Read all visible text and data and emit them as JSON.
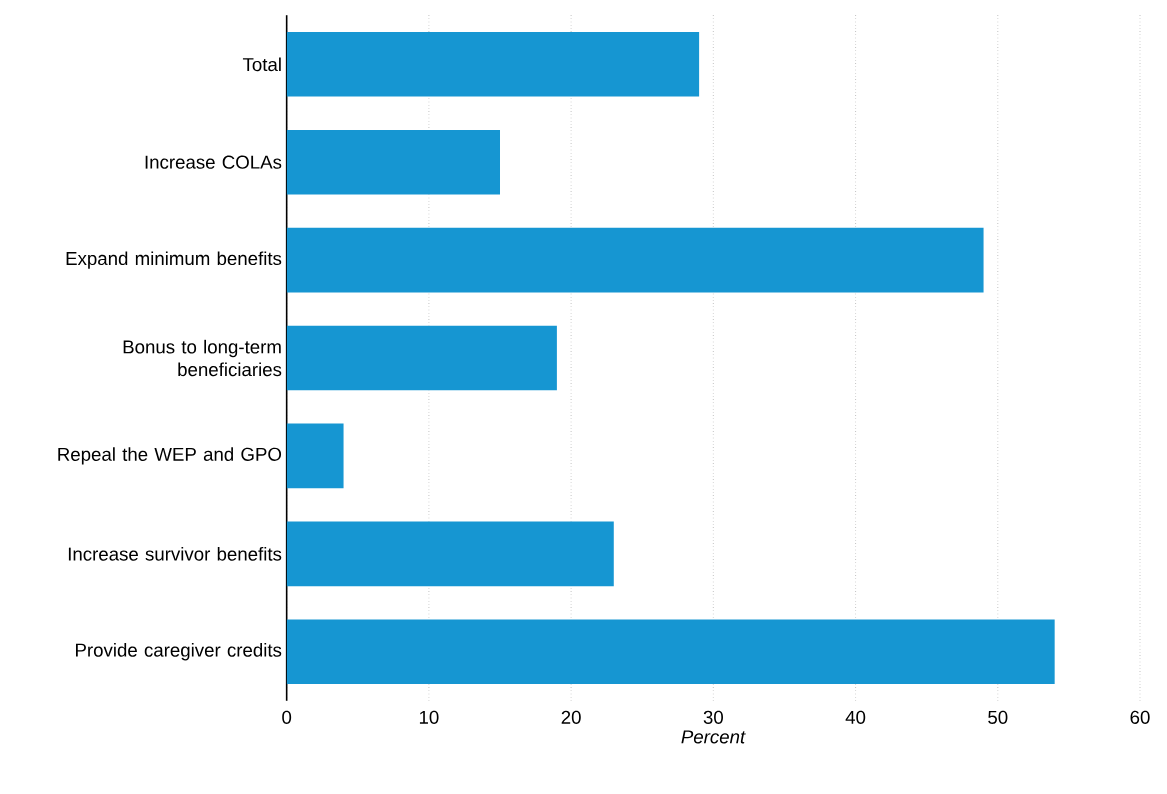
{
  "chart_data": {
    "type": "bar",
    "orientation": "horizontal",
    "categories": [
      "Total",
      "Increase COLAs",
      "Expand minimum benefits",
      "Bonus to long-term beneficiaries",
      "Repeal the WEP and GPO",
      "Increase survivor benefits",
      "Provide caregiver credits"
    ],
    "values": [
      29,
      15,
      49,
      19,
      4,
      23,
      54
    ],
    "color": "#1696d2",
    "xlabel": "*Percent*",
    "xlim": [
      0,
      60
    ],
    "xticks": [
      0,
      10,
      20,
      30,
      40,
      50,
      60
    ],
    "grid": "x"
  }
}
